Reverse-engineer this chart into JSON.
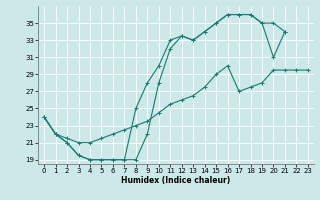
{
  "xlabel": "Humidex (Indice chaleur)",
  "bg_color": "#cce8e8",
  "grid_color": "#ffffff",
  "line_color": "#1a7a6e",
  "xlim": [
    -0.5,
    23.5
  ],
  "ylim": [
    18.5,
    37.0
  ],
  "xticks": [
    0,
    1,
    2,
    3,
    4,
    5,
    6,
    7,
    8,
    9,
    10,
    11,
    12,
    13,
    14,
    15,
    16,
    17,
    18,
    19,
    20,
    21,
    22,
    23
  ],
  "yticks": [
    19,
    21,
    23,
    25,
    27,
    29,
    31,
    33,
    35
  ],
  "line1_x": [
    0,
    1,
    2,
    3,
    4,
    5,
    6,
    7,
    8,
    9,
    10,
    11,
    12,
    13,
    14,
    15,
    16,
    17,
    18,
    19,
    20,
    21
  ],
  "line1_y": [
    24,
    22,
    21,
    19.5,
    19,
    19,
    19,
    19,
    25,
    28,
    30,
    33,
    33.5,
    33,
    34,
    35,
    36,
    36,
    36,
    35,
    35,
    34
  ],
  "line2_x": [
    0,
    1,
    2,
    3,
    4,
    5,
    6,
    7,
    8,
    9,
    10,
    11,
    12,
    13,
    14,
    15,
    16,
    17,
    18,
    19,
    20,
    21,
    22,
    23
  ],
  "line2_y": [
    24,
    22,
    21,
    19.5,
    19,
    19,
    19,
    19,
    19,
    22,
    28,
    32,
    33.5,
    33,
    34,
    35,
    36,
    36,
    36,
    35,
    31,
    34,
    null,
    null
  ],
  "line3_x": [
    0,
    1,
    2,
    3,
    4,
    5,
    6,
    7,
    8,
    9,
    10,
    11,
    12,
    13,
    14,
    15,
    16,
    17,
    18,
    19,
    20,
    21,
    22,
    23
  ],
  "line3_y": [
    24,
    22,
    21.5,
    21,
    21,
    21.5,
    22,
    22.5,
    23,
    23.5,
    24.5,
    25.5,
    26,
    26.5,
    27.5,
    29,
    30,
    27,
    27.5,
    28,
    29.5,
    29.5,
    29.5,
    29.5
  ]
}
